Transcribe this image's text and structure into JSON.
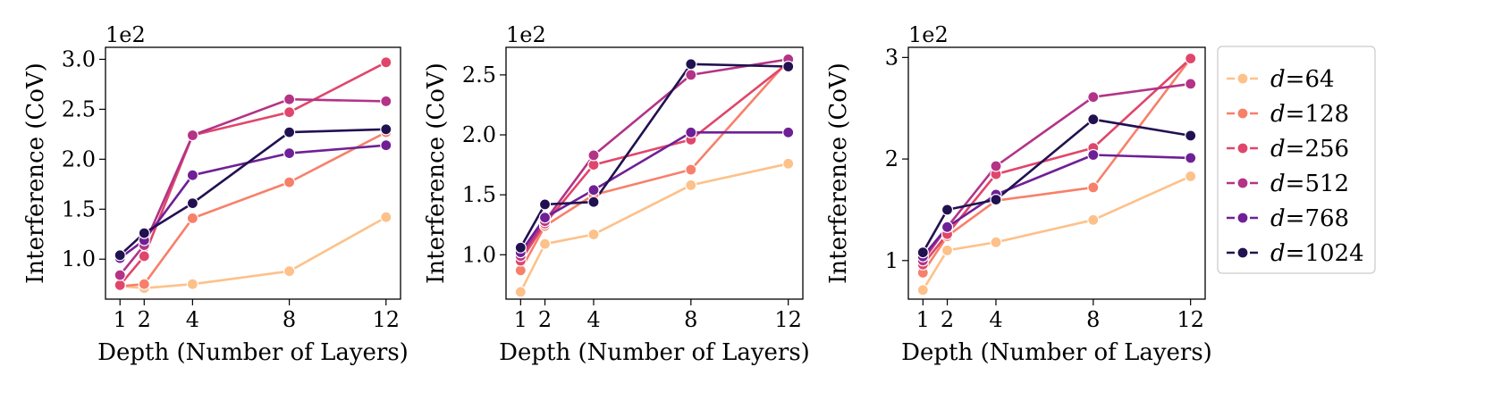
{
  "series_names": [
    "d=64",
    "d=128",
    "d=256",
    "d=512",
    "d=768",
    "d=1024"
  ],
  "series_colors": [
    "#fdc18a",
    "#f7806a",
    "#e0466b",
    "#b33387",
    "#6f2096",
    "#221150"
  ],
  "legend": {
    "placement": "right",
    "entries": [
      {
        "prefix": "d",
        "suffix": "=64"
      },
      {
        "prefix": "d",
        "suffix": "=128"
      },
      {
        "prefix": "d",
        "suffix": "=256"
      },
      {
        "prefix": "d",
        "suffix": "=512"
      },
      {
        "prefix": "d",
        "suffix": "=768"
      },
      {
        "prefix": "d",
        "suffix": "=1024"
      }
    ]
  },
  "chart_data": [
    {
      "type": "line",
      "title": "",
      "xlabel": "Depth (Number of Layers)",
      "ylabel": "Interference (CoV)",
      "y_offset_text": "1e2",
      "x": [
        1,
        2,
        4,
        8,
        12
      ],
      "xticks": [
        "1",
        "2",
        "4",
        "8",
        "12"
      ],
      "xlim": [
        0.4,
        12.6
      ],
      "ylim": [
        0.6,
        3.12
      ],
      "yticks": [
        1.0,
        1.5,
        2.0,
        2.5,
        3.0
      ],
      "ytick_labels": [
        "1.0",
        "1.5",
        "2.0",
        "2.5",
        "3.0"
      ],
      "series": [
        {
          "values": [
            0.73,
            0.71,
            0.75,
            0.88,
            1.42
          ]
        },
        {
          "values": [
            0.73,
            0.75,
            1.41,
            1.77,
            2.27
          ]
        },
        {
          "values": [
            0.74,
            1.03,
            2.24,
            2.47,
            2.97
          ]
        },
        {
          "values": [
            0.84,
            1.14,
            2.24,
            2.6,
            2.58
          ]
        },
        {
          "values": [
            1.01,
            1.19,
            1.84,
            2.06,
            2.14
          ]
        },
        {
          "values": [
            1.04,
            1.26,
            1.56,
            2.27,
            2.3
          ]
        }
      ]
    },
    {
      "type": "line",
      "title": "",
      "xlabel": "Depth (Number of Layers)",
      "ylabel": "Interference (CoV)",
      "y_offset_text": "1e2",
      "x": [
        1,
        2,
        4,
        8,
        12
      ],
      "xticks": [
        "1",
        "2",
        "4",
        "8",
        "12"
      ],
      "xlim": [
        0.4,
        12.6
      ],
      "ylim": [
        0.63,
        2.73
      ],
      "yticks": [
        1.0,
        1.5,
        2.0,
        2.5
      ],
      "ytick_labels": [
        "1.0",
        "1.5",
        "2.0",
        "2.5"
      ],
      "series": [
        {
          "values": [
            0.69,
            1.09,
            1.17,
            1.58,
            1.76
          ]
        },
        {
          "values": [
            0.87,
            1.24,
            1.5,
            1.71,
            2.62
          ]
        },
        {
          "values": [
            0.95,
            1.26,
            1.75,
            1.96,
            2.6
          ]
        },
        {
          "values": [
            0.99,
            1.28,
            1.83,
            2.5,
            2.63
          ]
        },
        {
          "values": [
            1.02,
            1.31,
            1.54,
            2.02,
            2.02
          ]
        },
        {
          "values": [
            1.06,
            1.42,
            1.44,
            2.59,
            2.57
          ]
        }
      ]
    },
    {
      "type": "line",
      "title": "",
      "xlabel": "Depth (Number of Layers)",
      "ylabel": "Interference (CoV)",
      "y_offset_text": "1e2",
      "x": [
        1,
        2,
        4,
        8,
        12
      ],
      "xticks": [
        "1",
        "2",
        "4",
        "8",
        "12"
      ],
      "xlim": [
        0.4,
        12.6
      ],
      "ylim": [
        0.62,
        3.1
      ],
      "yticks": [
        1,
        2,
        3
      ],
      "ytick_labels": [
        "1",
        "2",
        "3"
      ],
      "series": [
        {
          "values": [
            0.71,
            1.1,
            1.18,
            1.4,
            1.83
          ]
        },
        {
          "values": [
            0.88,
            1.24,
            1.59,
            1.72,
            2.99
          ]
        },
        {
          "values": [
            0.96,
            1.26,
            1.85,
            2.11,
            2.99
          ]
        },
        {
          "values": [
            1.0,
            1.33,
            1.93,
            2.61,
            2.74
          ]
        },
        {
          "values": [
            1.04,
            1.33,
            1.65,
            2.04,
            2.01
          ]
        },
        {
          "values": [
            1.08,
            1.5,
            1.6,
            2.39,
            2.23
          ]
        }
      ]
    }
  ]
}
